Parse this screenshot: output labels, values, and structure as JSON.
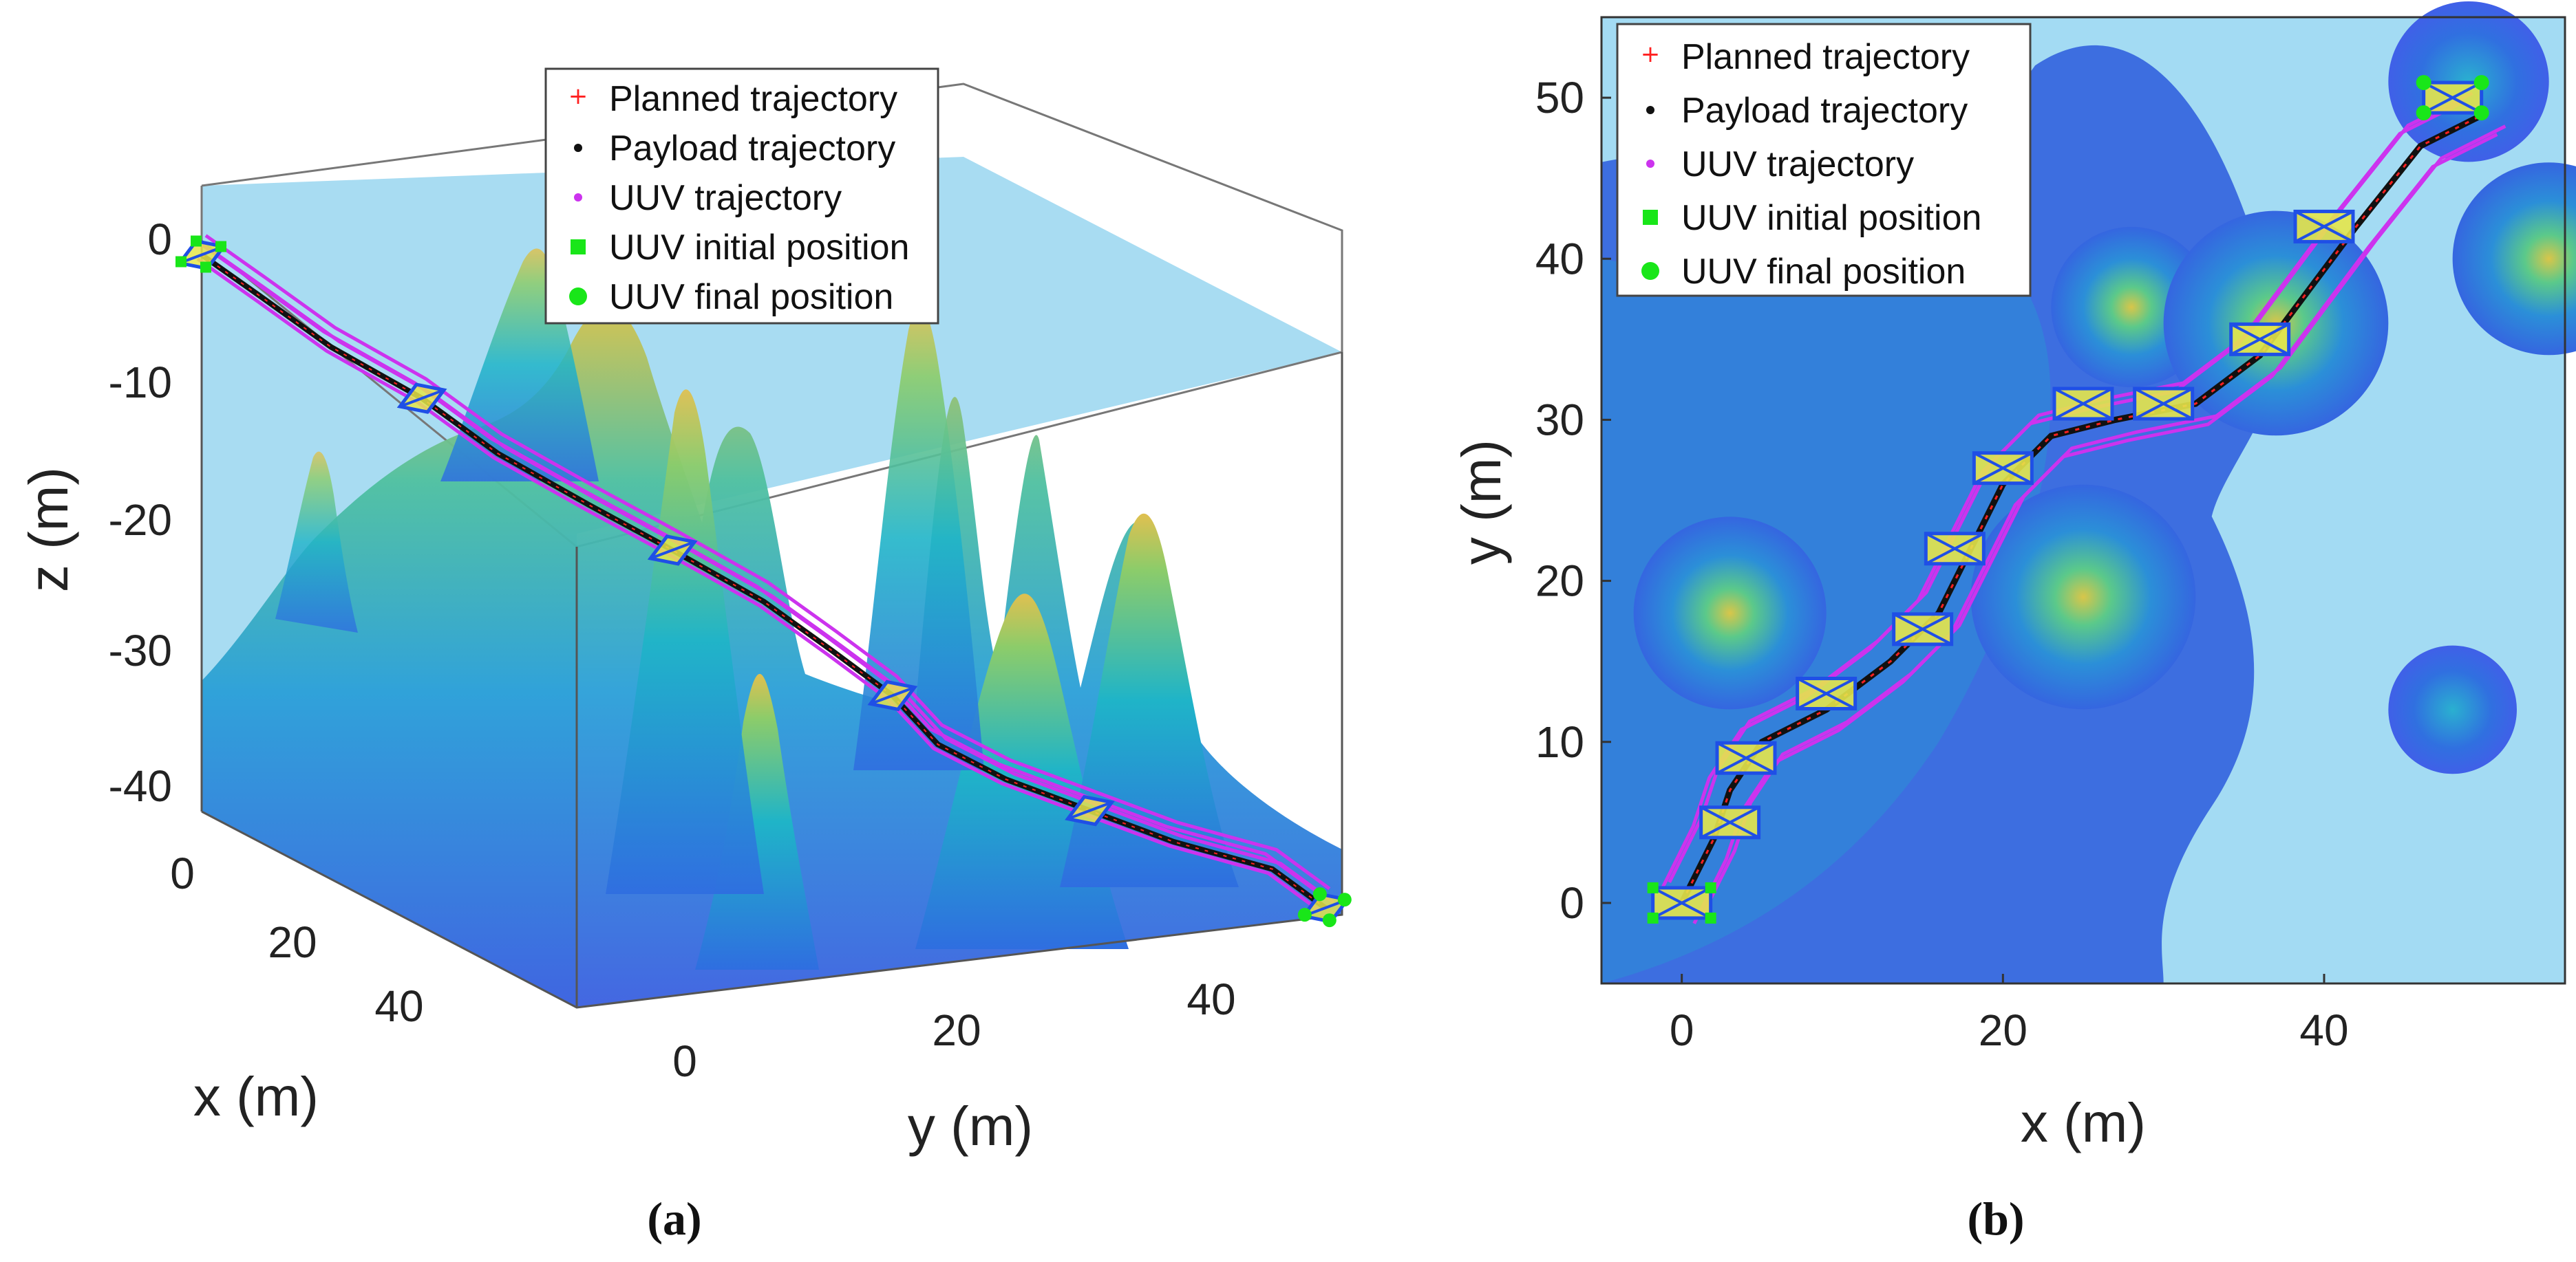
{
  "figure_captions": [
    "(a)",
    "(b)"
  ],
  "colors": {
    "background_water": "#a3dbf3",
    "planned": "#ff2020",
    "payload": "#111111",
    "uuv": "#cc33ee",
    "initial": "#19e619",
    "final": "#19e619",
    "formation_frame": "#1f4fe6",
    "payload_body": "#e6e64a"
  },
  "chart_data": [
    {
      "type": "scatter",
      "projection": "3d",
      "panel": "(a)",
      "xlabel": "x (m)",
      "ylabel": "y (m)",
      "zlabel": "z (m)",
      "xlim": [
        0,
        50
      ],
      "ylim": [
        -5,
        50
      ],
      "zlim": [
        -41,
        3
      ],
      "x_ticks": [
        "0",
        "20",
        "40"
      ],
      "y_ticks": [
        "0",
        "20",
        "40"
      ],
      "z_ticks": [
        "0",
        "-10",
        "-20",
        "-30",
        "-40"
      ],
      "legend_position": "top-center",
      "legend": [
        {
          "label": "Planned trajectory",
          "marker": "+",
          "color": "#ff2020"
        },
        {
          "label": "Payload trajectory",
          "marker": "•",
          "color": "#111111"
        },
        {
          "label": "UUV trajectory",
          "marker": "•",
          "color": "#cc33ee"
        },
        {
          "label": "UUV initial position",
          "marker": "■",
          "color": "#19e619"
        },
        {
          "label": "UUV final position",
          "marker": "●",
          "color": "#19e619"
        }
      ],
      "payload_trajectory": {
        "x": [
          0,
          2,
          5,
          9,
          13,
          17,
          20,
          24,
          27,
          31,
          35,
          38,
          41,
          44,
          47,
          50
        ],
        "y": [
          0,
          3,
          6,
          10,
          13,
          17,
          21,
          25,
          28,
          30,
          31,
          34,
          38,
          42,
          47,
          49
        ],
        "z": [
          -1,
          -4,
          -7,
          -10,
          -13,
          -16,
          -19,
          -22,
          -25,
          -27,
          -29,
          -31,
          -33,
          -35,
          -37,
          -39
        ]
      },
      "surface": "seabed terrain with multiple peaks"
    },
    {
      "type": "scatter",
      "panel": "(b)",
      "xlabel": "x (m)",
      "ylabel": "y (m)",
      "xlim": [
        -5,
        55
      ],
      "ylim": [
        -5,
        55
      ],
      "x_ticks": [
        "0",
        "20",
        "40"
      ],
      "y_ticks": [
        "0",
        "10",
        "20",
        "30",
        "40",
        "50"
      ],
      "legend_position": "top-left",
      "legend": [
        {
          "label": "Planned trajectory",
          "marker": "+",
          "color": "#ff2020"
        },
        {
          "label": "Payload trajectory",
          "marker": "•",
          "color": "#111111"
        },
        {
          "label": "UUV trajectory",
          "marker": "•",
          "color": "#cc33ee"
        },
        {
          "label": "UUV initial position",
          "marker": "■",
          "color": "#19e619"
        },
        {
          "label": "UUV final position",
          "marker": "●",
          "color": "#19e619"
        }
      ],
      "payload_trajectory": {
        "x": [
          0,
          2,
          3,
          5,
          9,
          13,
          16,
          18,
          20,
          23,
          27,
          32,
          36,
          39,
          42,
          46,
          50
        ],
        "y": [
          0,
          4,
          7,
          10,
          12,
          15,
          18,
          22,
          26,
          29,
          30,
          31,
          34,
          38,
          42,
          47,
          49
        ]
      },
      "formation_centers": {
        "x": [
          0,
          3,
          4,
          9,
          15,
          17,
          20,
          25,
          30,
          36,
          40,
          48
        ],
        "y": [
          0,
          5,
          9,
          13,
          17,
          22,
          27,
          31,
          31,
          35,
          42,
          50
        ]
      },
      "obstacles": {
        "x": [
          3,
          28,
          25,
          49,
          48,
          37,
          54
        ],
        "y": [
          18,
          37,
          19,
          51,
          12,
          36,
          40
        ],
        "r": [
          6,
          5,
          7,
          5,
          4,
          7,
          6
        ]
      }
    }
  ]
}
